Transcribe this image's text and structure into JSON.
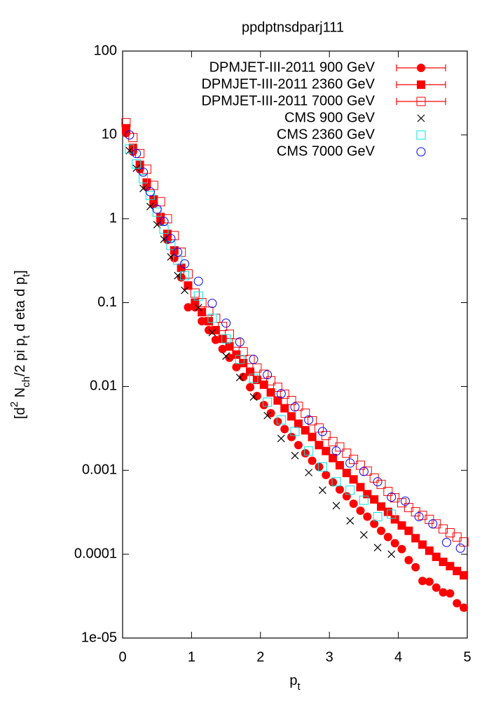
{
  "chart_data": {
    "type": "scatter",
    "title": "ppdptnsdparj111",
    "xlabel": [
      {
        "text": "p",
        "pos": "base"
      },
      {
        "text": "t",
        "pos": "sub"
      }
    ],
    "ylabel": [
      {
        "text": "[d",
        "pos": "base"
      },
      {
        "text": "2",
        "pos": "sup"
      },
      {
        "text": " N",
        "pos": "base"
      },
      {
        "text": "ch",
        "pos": "sub"
      },
      {
        "text": "/2 pi p",
        "pos": "base"
      },
      {
        "text": "t",
        "pos": "sub"
      },
      {
        "text": " d eta d p",
        "pos": "base"
      },
      {
        "text": "t",
        "pos": "sub"
      },
      {
        "text": "]",
        "pos": "base"
      }
    ],
    "xlim": [
      0,
      5
    ],
    "xticks": [
      0,
      1,
      2,
      3,
      4,
      5
    ],
    "ylim": [
      1e-05,
      100
    ],
    "ylog": true,
    "yticks": [
      {
        "value": 1e-05,
        "label": "1e-05"
      },
      0.0001,
      0.001,
      0.01,
      0.1,
      1,
      10,
      100
    ],
    "legend": "top-right",
    "series": [
      {
        "name": "DPMJET-III-2011 900 GeV",
        "color": "#ff0000",
        "marker": "circle-filled",
        "errorbars": true,
        "x": [
          0.05,
          0.15,
          0.25,
          0.35,
          0.45,
          0.55,
          0.65,
          0.75,
          0.85,
          0.95,
          1.05,
          1.15,
          1.25,
          1.35,
          1.45,
          1.55,
          1.65,
          1.75,
          1.85,
          1.95,
          2.05,
          2.15,
          2.25,
          2.35,
          2.45,
          2.55,
          2.65,
          2.75,
          2.85,
          2.95,
          3.05,
          3.15,
          3.25,
          3.35,
          3.45,
          3.55,
          3.65,
          3.75,
          3.85,
          3.95,
          4.05,
          4.15,
          4.25,
          4.35,
          4.45,
          4.55,
          4.65,
          4.75,
          4.85,
          4.95
        ],
        "values": [
          10.5,
          6.3,
          3.9,
          2.4,
          1.5,
          0.92,
          0.56,
          0.34,
          0.2,
          0.088,
          0.088,
          0.06,
          0.047,
          0.036,
          0.028,
          0.022,
          0.017,
          0.013,
          0.0098,
          0.0077,
          0.006,
          0.0048,
          0.0038,
          0.0031,
          0.0025,
          0.002,
          0.0016,
          0.0013,
          0.0011,
          0.00088,
          0.00072,
          0.00059,
          0.00049,
          0.0004,
          0.00033,
          0.00028,
          0.00023,
          0.00019,
          0.00016,
          0.000135,
          0.000115,
          8.5e-05,
          7e-05,
          4.8e-05,
          4.7e-05,
          4e-05,
          3.5e-05,
          3.4e-05,
          2.6e-05,
          2.3e-05
        ]
      },
      {
        "name": "DPMJET-III-2011 2360 GeV",
        "color": "#ff0000",
        "marker": "square-filled",
        "errorbars": true,
        "x": [
          0.05,
          0.15,
          0.25,
          0.35,
          0.45,
          0.55,
          0.65,
          0.75,
          0.85,
          0.95,
          1.05,
          1.15,
          1.25,
          1.35,
          1.45,
          1.55,
          1.65,
          1.75,
          1.85,
          1.95,
          2.05,
          2.15,
          2.25,
          2.35,
          2.45,
          2.55,
          2.65,
          2.75,
          2.85,
          2.95,
          3.05,
          3.15,
          3.25,
          3.35,
          3.45,
          3.55,
          3.65,
          3.75,
          3.85,
          3.95,
          4.05,
          4.15,
          4.25,
          4.35,
          4.45,
          4.55,
          4.65,
          4.75,
          4.85,
          4.95
        ],
        "values": [
          12,
          7,
          4.4,
          2.7,
          1.7,
          1.05,
          0.66,
          0.42,
          0.26,
          0.16,
          0.1,
          0.077,
          0.06,
          0.047,
          0.037,
          0.03,
          0.024,
          0.019,
          0.015,
          0.012,
          0.0105,
          0.0085,
          0.0068,
          0.0055,
          0.0044,
          0.0036,
          0.003,
          0.0025,
          0.002,
          0.0017,
          0.0014,
          0.00115,
          0.00093,
          0.00078,
          0.00063,
          0.00052,
          0.00045,
          0.00037,
          0.00032,
          0.00026,
          0.00022,
          0.00019,
          0.000155,
          0.00013,
          0.00011,
          9.3e-05,
          8.1e-05,
          7.2e-05,
          6.3e-05,
          5.6e-05
        ]
      },
      {
        "name": "DPMJET-III-2011 7000 GeV",
        "color": "#ff0000",
        "marker": "square-open",
        "errorbars": true,
        "x": [
          0.05,
          0.15,
          0.25,
          0.35,
          0.45,
          0.55,
          0.65,
          0.75,
          0.85,
          0.95,
          1.05,
          1.15,
          1.25,
          1.35,
          1.45,
          1.55,
          1.65,
          1.75,
          1.85,
          1.95,
          2.05,
          2.15,
          2.25,
          2.35,
          2.45,
          2.55,
          2.65,
          2.75,
          2.85,
          2.95,
          3.05,
          3.15,
          3.25,
          3.35,
          3.45,
          3.55,
          3.65,
          3.75,
          3.85,
          3.95,
          4.05,
          4.15,
          4.25,
          4.35,
          4.45,
          4.55,
          4.65,
          4.75,
          4.85,
          4.95
        ],
        "values": [
          14,
          9.3,
          6,
          3.9,
          2.5,
          1.6,
          1.0,
          0.63,
          0.4,
          0.22,
          0.13,
          0.1,
          0.079,
          0.065,
          0.052,
          0.042,
          0.033,
          0.026,
          0.021,
          0.0166,
          0.014,
          0.0117,
          0.0098,
          0.0081,
          0.0068,
          0.0058,
          0.0048,
          0.0039,
          0.0032,
          0.0026,
          0.0022,
          0.0019,
          0.0016,
          0.00135,
          0.00115,
          0.00098,
          0.00081,
          0.00068,
          0.00056,
          0.00047,
          0.00041,
          0.00036,
          0.00032,
          0.00029,
          0.00026,
          0.00023,
          0.0002,
          0.00018,
          0.00016,
          0.00014
        ]
      },
      {
        "name": "CMS 900 GeV",
        "color": "#000000",
        "marker": "cross",
        "x": [
          0.1,
          0.2,
          0.3,
          0.4,
          0.5,
          0.6,
          0.7,
          0.8,
          0.9,
          1.1,
          1.3,
          1.5,
          1.7,
          1.9,
          2.1,
          2.3,
          2.5,
          2.7,
          2.9,
          3.1,
          3.3,
          3.5,
          3.7,
          3.9
        ],
        "values": [
          6.5,
          4,
          2.3,
          1.4,
          0.85,
          0.57,
          0.35,
          0.21,
          0.14,
          0.087,
          0.044,
          0.023,
          0.0128,
          0.0075,
          0.0045,
          0.0024,
          0.0015,
          0.00094,
          0.00058,
          0.00038,
          0.00025,
          0.00017,
          0.00012,
          0.0001
        ]
      },
      {
        "name": "CMS 2360 GeV",
        "color": "#00e5e5",
        "marker": "square-open",
        "x": [
          0.1,
          0.2,
          0.3,
          0.4,
          0.5,
          0.6,
          0.7,
          0.8,
          0.9,
          1.1,
          1.3,
          1.5,
          1.7,
          1.9,
          2.1,
          2.3,
          2.5,
          2.7,
          2.9,
          3.1,
          3.3,
          3.5,
          3.7,
          3.9
        ],
        "values": [
          6.8,
          4.5,
          3,
          1.9,
          1.2,
          0.75,
          0.48,
          0.32,
          0.21,
          0.12,
          0.065,
          0.037,
          0.021,
          0.0125,
          0.0065,
          0.004,
          0.0029,
          0.0017,
          0.0011,
          0.00073,
          0.00058,
          0.00044,
          0.00028,
          0.0003
        ]
      },
      {
        "name": "CMS 7000 GeV",
        "color": "#0000ff",
        "marker": "circle-open",
        "x": [
          0.1,
          0.2,
          0.3,
          0.4,
          0.5,
          0.6,
          0.7,
          0.8,
          0.9,
          1.1,
          1.3,
          1.5,
          1.7,
          1.9,
          2.1,
          2.3,
          2.5,
          2.7,
          2.9,
          3.1,
          3.3,
          3.5,
          3.7,
          3.9,
          4.1,
          4.3,
          4.5,
          4.7,
          4.9
        ],
        "values": [
          10,
          6,
          3.6,
          2.1,
          1.3,
          0.93,
          0.58,
          0.4,
          0.29,
          0.18,
          0.098,
          0.057,
          0.034,
          0.021,
          0.0138,
          0.0082,
          0.0057,
          0.004,
          0.0029,
          0.0017,
          0.00122,
          0.00097,
          0.00073,
          0.00048,
          0.00043,
          0.00028,
          0.00023,
          0.000138,
          0.000118
        ]
      }
    ]
  }
}
